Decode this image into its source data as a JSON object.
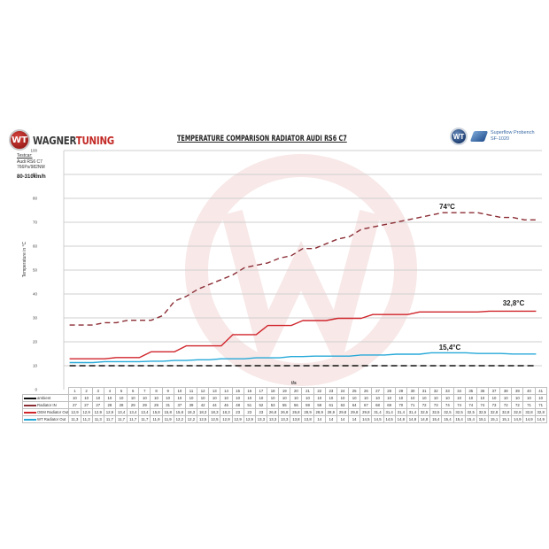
{
  "header": {
    "brand_left_word": "WAGNER",
    "brand_right_word": "TUNING",
    "brand_badge": "WT",
    "title": "TEMPERATURE COMPARISON RADIATOR AUDI RS6 C7",
    "partner_badge": "WT",
    "bench_line1": "Superflow Probench",
    "bench_line2": "SF-1020"
  },
  "meta": {
    "testcar_label": "Testcar:",
    "car_model": "Audi RS6 C7",
    "car_power": "766Ps/982NM",
    "speed_range": "80-310km/h"
  },
  "chart_data": {
    "type": "line",
    "title": "TEMPERATURE COMPARISON RADIATOR AUDI RS6 C7",
    "xlabel": "t/s",
    "ylabel": "Temperature in °C",
    "ylim": [
      0,
      100
    ],
    "yticks": [
      0,
      10,
      20,
      30,
      40,
      50,
      60,
      70,
      80,
      90,
      100
    ],
    "grid": true,
    "legend_position": "table-below",
    "x": [
      1,
      2,
      3,
      4,
      5,
      6,
      7,
      8,
      9,
      10,
      11,
      12,
      13,
      14,
      15,
      16,
      17,
      18,
      19,
      20,
      21,
      22,
      23,
      24,
      25,
      26,
      27,
      28,
      29,
      30,
      31,
      32,
      33,
      34,
      35,
      36,
      37,
      38,
      39,
      40,
      41
    ],
    "series": [
      {
        "name": "ambient",
        "color": "#111111",
        "style": "dashed",
        "values": [
          10,
          10,
          10,
          10,
          10,
          10,
          10,
          10,
          10,
          10,
          10,
          10,
          10,
          10,
          10,
          10,
          10,
          10,
          10,
          10,
          10,
          10,
          10,
          10,
          10,
          10,
          10,
          10,
          10,
          10,
          10,
          10,
          10,
          10,
          10,
          10,
          10,
          10,
          10,
          10,
          10
        ]
      },
      {
        "name": "Radiator IN",
        "color": "#8b2e35",
        "style": "dashed",
        "values": [
          27,
          27,
          27,
          28,
          28,
          29,
          29,
          29,
          31,
          37,
          39,
          42,
          44,
          46,
          48,
          51,
          52,
          53,
          55,
          56,
          59,
          59,
          61,
          63,
          64,
          67,
          68,
          69,
          70,
          71,
          72,
          73,
          74,
          74,
          74,
          74,
          73,
          72,
          72,
          71,
          71
        ]
      },
      {
        "name": "OEM Radiator Out",
        "color": "#d0252b",
        "style": "solid",
        "values": [
          12.9,
          12.9,
          12.9,
          12.9,
          13.4,
          13.4,
          13.4,
          15.8,
          15.8,
          15.8,
          18.3,
          18.3,
          18.3,
          18.3,
          23,
          23,
          23,
          26.8,
          26.8,
          26.8,
          28.9,
          28.9,
          28.9,
          29.8,
          29.8,
          29.8,
          31.4,
          31.4,
          31.4,
          31.4,
          32.5,
          32.5,
          32.5,
          32.5,
          32.5,
          32.5,
          32.8,
          32.8,
          32.8,
          32.8,
          32.8
        ]
      },
      {
        "name": "WT Radiator Out",
        "color": "#27a9d8",
        "style": "solid",
        "values": [
          11.3,
          11.3,
          11.3,
          11.7,
          11.7,
          11.7,
          11.7,
          11.9,
          11.9,
          12.2,
          12.2,
          12.5,
          12.5,
          12.9,
          12.9,
          12.9,
          13.3,
          13.3,
          13.3,
          13.8,
          13.8,
          14,
          14,
          14,
          14,
          14.5,
          14.5,
          14.5,
          14.8,
          14.8,
          14.8,
          15.4,
          15.4,
          15.4,
          15.4,
          15.1,
          15.1,
          15.1,
          14.9,
          14.9,
          14.9
        ]
      }
    ],
    "annotations": [
      {
        "text": "74°C",
        "series": "Radiator IN"
      },
      {
        "text": "32,8°C",
        "series": "OEM Radiator Out"
      },
      {
        "text": "15,4°C",
        "series": "WT Radiator Out"
      }
    ]
  },
  "table": {
    "row_labels": [
      "ambient",
      "Radiator IN",
      "OEM Radiator Out",
      "WT Radiator Out"
    ]
  }
}
